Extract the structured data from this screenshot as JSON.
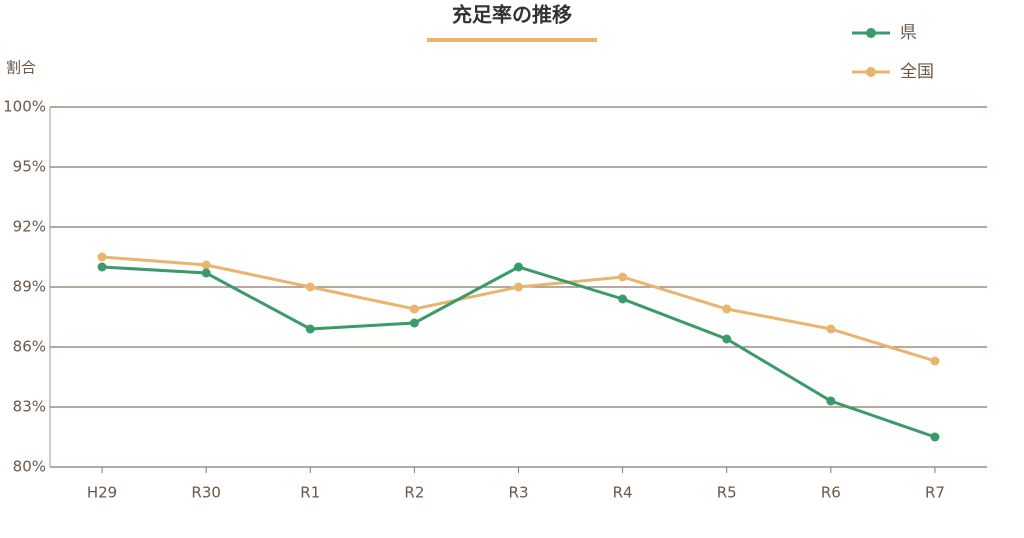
{
  "chart_data": {
    "type": "line",
    "title": "充足率の推移",
    "y_label": "割合",
    "categories": [
      "H29",
      "R30",
      "R1",
      "R2",
      "R3",
      "R4",
      "R5",
      "R6",
      "R7"
    ],
    "series": [
      {
        "name": "県",
        "color": "#3a9a6a",
        "values": [
          90.0,
          89.7,
          86.9,
          87.2,
          90.0,
          88.4,
          86.4,
          83.3,
          81.5
        ]
      },
      {
        "name": "全国",
        "color": "#e8b46e",
        "values": [
          90.5,
          90.1,
          89.0,
          87.9,
          89.0,
          89.5,
          87.9,
          86.9,
          85.3
        ]
      }
    ],
    "ylim": [
      80,
      100
    ],
    "yticks": [
      {
        "value": 80,
        "label": "80%"
      },
      {
        "value": 83,
        "label": "83%"
      },
      {
        "value": 86,
        "label": "86%"
      },
      {
        "value": 89,
        "label": "89%"
      },
      {
        "value": 92,
        "label": "92%"
      },
      {
        "value": 95,
        "label": "95%"
      },
      {
        "value": 100,
        "label": "100%"
      }
    ],
    "grid": true
  }
}
